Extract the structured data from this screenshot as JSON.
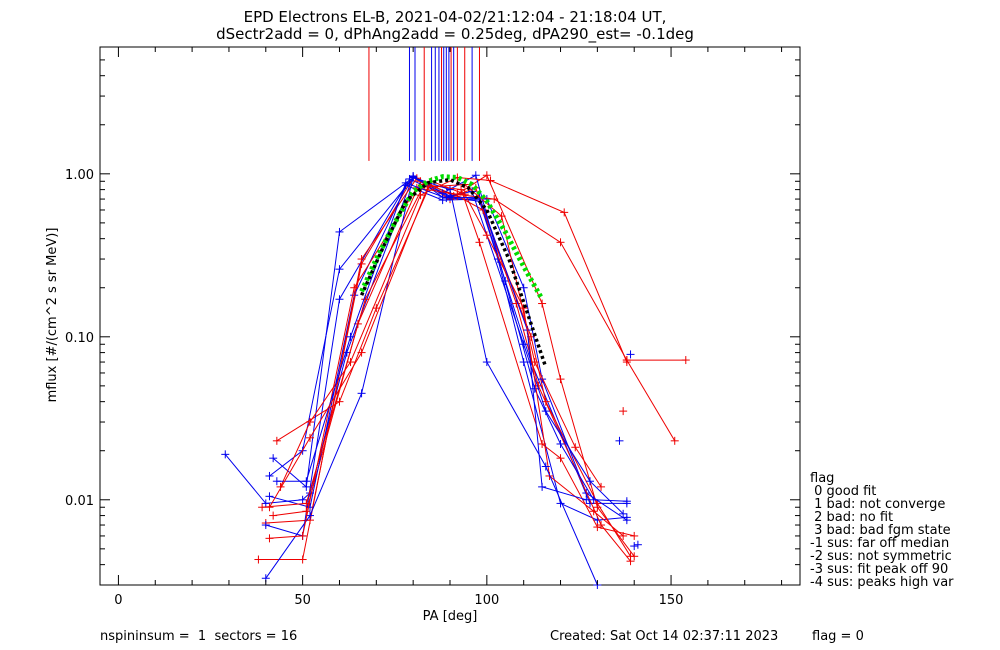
{
  "chart_data": {
    "type": "scatter",
    "title": "EPD Electrons EL-B, 2021-04-02/21:12:04 - 21:18:04 UT,",
    "subtitle": "dSectr2add = 0, dPhAng2add = 0.25deg, dPA290_est=  -0.1deg",
    "xlabel": "PA [deg]",
    "ylabel": "mflux [#/(cm^2 s sr MeV)]",
    "xlim": [
      -5,
      185
    ],
    "ylim": [
      0.003,
      6.0
    ],
    "yscale": "log",
    "grid": false,
    "xticks": [
      0,
      50,
      100,
      150
    ],
    "xtick_labels": [
      "0",
      "50",
      "100",
      "150"
    ],
    "yticks": [
      0.01,
      0.1,
      1.0
    ],
    "ytick_labels": [
      "0.01",
      "0.10",
      "1.00"
    ],
    "colors": {
      "red": "#ee0000",
      "blue": "#0000ee",
      "green": "#00dd00",
      "black": "#000000"
    },
    "vlines": [
      {
        "x": 68,
        "color": "#ee0000"
      },
      {
        "x": 79,
        "color": "#0000ee"
      },
      {
        "x": 80.5,
        "color": "#0000ee"
      },
      {
        "x": 83,
        "color": "#ee0000"
      },
      {
        "x": 85,
        "color": "#0000ee"
      },
      {
        "x": 86,
        "color": "#0000ee"
      },
      {
        "x": 87,
        "color": "#0000ee"
      },
      {
        "x": 87.7,
        "color": "#ee0000"
      },
      {
        "x": 88.3,
        "color": "#0000ee"
      },
      {
        "x": 89,
        "color": "#0000ee"
      },
      {
        "x": 89.7,
        "color": "#0000ee"
      },
      {
        "x": 90.3,
        "color": "#ee0000"
      },
      {
        "x": 91,
        "color": "#0000ee"
      },
      {
        "x": 92,
        "color": "#ee0000"
      },
      {
        "x": 94,
        "color": "#ee0000"
      },
      {
        "x": 96,
        "color": "#0000ee"
      },
      {
        "x": 98,
        "color": "#ee0000"
      }
    ],
    "vline_range": [
      1.2,
      6.0
    ],
    "series": [
      {
        "color": "blue",
        "points": [
          [
            29,
            0.019
          ],
          [
            40,
            0.0095
          ],
          [
            50,
            0.01
          ],
          [
            52,
            0.011
          ],
          [
            62,
            0.08
          ],
          [
            80,
            0.97
          ],
          [
            88,
            0.72
          ],
          [
            98,
            0.68
          ],
          [
            103,
            0.3
          ],
          [
            110,
            0.07
          ],
          [
            120,
            0.0095
          ],
          [
            130,
            0.0075
          ],
          [
            138,
            0.0078
          ]
        ]
      },
      {
        "color": "red",
        "points": [
          [
            40,
            0.0072
          ],
          [
            52,
            0.0075
          ],
          [
            66,
            0.28
          ],
          [
            80,
            0.95
          ],
          [
            90,
            0.7
          ],
          [
            100,
            0.98
          ],
          [
            115,
            0.16
          ],
          [
            120,
            0.055
          ],
          [
            130,
            0.009
          ],
          [
            140,
            0.0045
          ]
        ]
      },
      {
        "color": "blue",
        "points": [
          [
            40,
            0.007
          ],
          [
            50,
            0.006
          ],
          [
            60,
            0.17
          ],
          [
            78,
            0.85
          ],
          [
            88,
            0.69
          ],
          [
            98,
            0.7
          ],
          [
            105,
            0.22
          ],
          [
            112,
            0.07
          ],
          [
            128,
            0.0095
          ],
          [
            138,
            0.0095
          ]
        ]
      },
      {
        "color": "red",
        "points": [
          [
            42,
            0.008
          ],
          [
            51,
            0.0085
          ],
          [
            65,
            0.12
          ],
          [
            82,
            0.9
          ],
          [
            92,
            0.73
          ],
          [
            99,
            0.6
          ],
          [
            112,
            0.1
          ],
          [
            116,
            0.04
          ],
          [
            130,
            0.0095
          ],
          [
            139,
            0.0045
          ]
        ]
      },
      {
        "color": "blue",
        "points": [
          [
            41,
            0.0105
          ],
          [
            52,
            0.009
          ],
          [
            64,
            0.18
          ],
          [
            79,
            0.93
          ],
          [
            90,
            0.72
          ],
          [
            100,
            0.7
          ],
          [
            110,
            0.2
          ],
          [
            115,
            0.055
          ],
          [
            127,
            0.011
          ],
          [
            138,
            0.0075
          ]
        ]
      },
      {
        "color": "red",
        "points": [
          [
            38,
            0.0043
          ],
          [
            50,
            0.0043
          ],
          [
            66,
            0.3
          ],
          [
            81,
            0.94
          ],
          [
            91,
            0.73
          ],
          [
            97,
            0.82
          ],
          [
            108,
            0.16
          ],
          [
            114,
            0.05
          ],
          [
            131,
            0.007
          ],
          [
            139,
            0.0042
          ]
        ]
      },
      {
        "color": "blue",
        "points": [
          [
            40,
            0.0033
          ],
          [
            52,
            0.008
          ],
          [
            66,
            0.045
          ],
          [
            80,
            0.96
          ],
          [
            88,
            0.76
          ],
          [
            97,
            0.98
          ],
          [
            113,
            0.048
          ],
          [
            120,
            0.022
          ],
          [
            129,
            0.01
          ],
          [
            138,
            0.0098
          ]
        ]
      },
      {
        "color": "red",
        "points": [
          [
            39,
            0.009
          ],
          [
            51,
            0.0095
          ],
          [
            67,
            0.17
          ],
          [
            83,
            0.86
          ],
          [
            93,
            0.8
          ],
          [
            98,
            0.38
          ],
          [
            115,
            0.022
          ],
          [
            120,
            0.018
          ],
          [
            130,
            0.0068
          ],
          [
            140,
            0.006
          ]
        ]
      },
      {
        "color": "blue",
        "points": [
          [
            41,
            0.014
          ],
          [
            50,
            0.02
          ],
          [
            60,
            0.26
          ],
          [
            80,
            0.95
          ],
          [
            90,
            0.73
          ],
          [
            96,
            0.78
          ],
          [
            110,
            0.09
          ],
          [
            116,
            0.035
          ],
          [
            128,
            0.013
          ],
          [
            137,
            0.0082
          ]
        ]
      },
      {
        "color": "red",
        "points": [
          [
            43,
            0.023
          ],
          [
            60,
            0.04
          ],
          [
            70,
            0.15
          ],
          [
            85,
            0.9
          ],
          [
            94,
            0.75
          ],
          [
            100,
            0.42
          ],
          [
            110,
            0.15
          ],
          [
            117,
            0.014
          ],
          [
            129,
            0.0085
          ],
          [
            137,
            0.006
          ]
        ]
      },
      {
        "color": "blue",
        "points": [
          [
            42,
            0.018
          ],
          [
            51,
            0.012
          ],
          [
            60,
            0.44
          ],
          [
            80,
            0.95
          ],
          [
            90,
            0.8
          ],
          [
            100,
            0.07
          ],
          [
            116,
            0.016
          ],
          [
            130,
            0.003
          ]
        ]
      },
      {
        "color": "red",
        "points": [
          [
            44,
            0.012
          ],
          [
            52,
            0.03
          ],
          [
            63,
            0.07
          ],
          [
            82,
            0.74
          ],
          [
            92,
            0.95
          ],
          [
            101,
            0.91
          ],
          [
            121,
            0.58
          ],
          [
            138,
            0.07
          ]
        ]
      },
      {
        "color": "red",
        "points": [
          [
            41,
            0.0058
          ],
          [
            50,
            0.006
          ],
          [
            64,
            0.2
          ],
          [
            81,
            0.82
          ],
          [
            92,
            0.75
          ],
          [
            102,
            0.7
          ],
          [
            120,
            0.38
          ],
          [
            138,
            0.072
          ],
          [
            154,
            0.072
          ]
        ]
      },
      {
        "color": "blue",
        "points": [
          [
            43,
            0.013
          ],
          [
            51,
            0.013
          ],
          [
            63,
            0.1
          ],
          [
            78,
            0.88
          ],
          [
            89,
            0.71
          ],
          [
            98,
            0.72
          ],
          [
            111,
            0.11
          ],
          [
            115,
            0.012
          ],
          [
            127,
            0.01
          ]
        ]
      },
      {
        "color": "red",
        "points": [
          [
            41,
            0.009
          ],
          [
            52,
            0.024
          ],
          [
            66,
            0.08
          ],
          [
            84,
            0.83
          ],
          [
            94,
            0.86
          ],
          [
            104,
            0.55
          ],
          [
            113,
            0.07
          ],
          [
            124,
            0.021
          ],
          [
            131,
            0.012
          ]
        ]
      },
      {
        "color": "red",
        "points": [
          [
            138,
            0.072
          ],
          [
            151,
            0.023
          ]
        ]
      }
    ],
    "markers_only": [
      {
        "color": "red",
        "points": [
          [
            137,
            0.035
          ]
        ]
      },
      {
        "color": "blue",
        "points": [
          [
            136,
            0.023
          ],
          [
            139,
            0.078
          ],
          [
            140,
            0.0052
          ],
          [
            141,
            0.0053
          ]
        ]
      }
    ],
    "fit_lines": [
      {
        "color": "green",
        "points": [
          [
            66,
            0.19
          ],
          [
            70,
            0.3
          ],
          [
            75,
            0.5
          ],
          [
            80,
            0.78
          ],
          [
            84,
            0.9
          ],
          [
            88,
            0.96
          ],
          [
            92,
            0.95
          ],
          [
            96,
            0.86
          ],
          [
            100,
            0.68
          ],
          [
            105,
            0.44
          ],
          [
            110,
            0.27
          ],
          [
            115,
            0.17
          ]
        ]
      },
      {
        "color": "black",
        "points": [
          [
            66,
            0.18
          ],
          [
            72,
            0.36
          ],
          [
            78,
            0.68
          ],
          [
            84,
            0.88
          ],
          [
            90,
            0.92
          ],
          [
            95,
            0.82
          ],
          [
            100,
            0.6
          ],
          [
            106,
            0.3
          ],
          [
            112,
            0.12
          ],
          [
            116,
            0.065
          ]
        ]
      }
    ]
  },
  "legend": {
    "title": "flag",
    "items": [
      " 0 good fit",
      " 1 bad: not converge",
      " 2 bad: no fit",
      " 3 bad: bad fgm state",
      "-1 sus: far off median",
      "-2 sus: not symmetric",
      "-3 sus: fit peak off 90",
      "-4 sus: peaks high var"
    ]
  },
  "footer": {
    "left": "nspininsum =  1  sectors = 16",
    "created": "Created: Sat Oct 14 02:37:11 2023",
    "flag": "flag = 0"
  }
}
